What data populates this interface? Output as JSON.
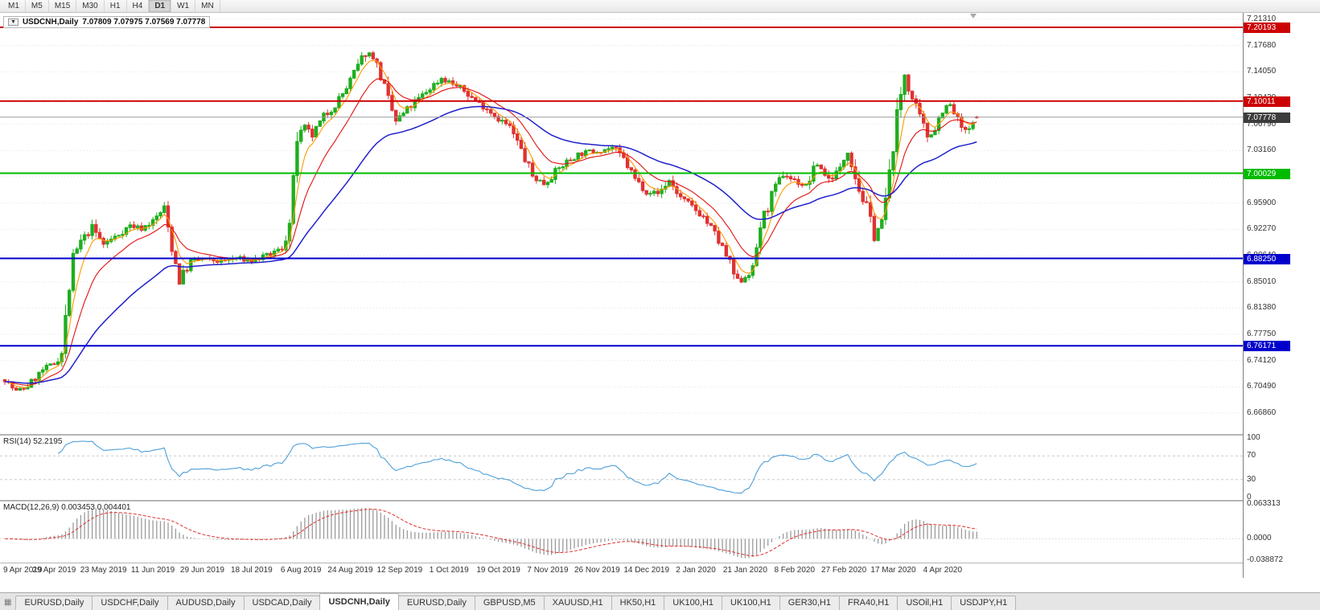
{
  "toolbar": {
    "timeframes": [
      "M1",
      "M5",
      "M15",
      "M30",
      "H1",
      "H4",
      "D1",
      "W1",
      "MN"
    ],
    "active_timeframe": "D1"
  },
  "chart": {
    "symbol_title": "USDCNH,Daily",
    "ohlc_line": "7.07809 7.07975 7.07569 7.07778",
    "dropdown_icon": "▼"
  },
  "chart_data": {
    "type": "candlestick",
    "symbol": "USDCNH",
    "period": "Daily",
    "current_bar": {
      "open": 7.07809,
      "high": 7.07975,
      "low": 7.07569,
      "close": 7.07778
    },
    "y_axis": {
      "top_price": 7.2131,
      "tick_step": 0.0363,
      "ticks": [
        "7.21310",
        "7.17680",
        "7.14050",
        "7.10420",
        "7.06790",
        "7.03160",
        "6.99530",
        "6.95900",
        "6.92270",
        "6.88640",
        "6.85010",
        "6.81380",
        "6.77750",
        "6.74120",
        "6.70490",
        "6.66860"
      ]
    },
    "x_axis": {
      "label_day_step": 13,
      "labels": [
        "9 Apr 2019",
        "29 Apr 2019",
        "23 May 2019",
        "11 Jun 2019",
        "29 Jun 2019",
        "18 Jul 2019",
        "6 Aug 2019",
        "24 Aug 2019",
        "12 Sep 2019",
        "1 Oct 2019",
        "19 Oct 2019",
        "7 Nov 2019",
        "26 Nov 2019",
        "14 Dec 2019",
        "2 Jan 2020",
        "21 Jan 2020",
        "8 Feb 2020",
        "27 Feb 2020",
        "17 Mar 2020",
        "4 Apr 2020"
      ]
    },
    "horizontal_lines": [
      {
        "price": 7.20193,
        "label": "7.20193",
        "color": "#cc0000"
      },
      {
        "price": 7.10011,
        "label": "7.10011",
        "color": "#cc0000"
      },
      {
        "price": 7.00029,
        "label": "7.00029",
        "color": "#00bb00"
      },
      {
        "price": 6.8825,
        "label": "6.88250",
        "color": "#0000cc"
      },
      {
        "price": 6.76171,
        "label": "6.76171",
        "color": "#0000cc"
      }
    ],
    "current_price": {
      "value": 7.07778,
      "label": "7.07778",
      "badge_color": "#3c3c3c"
    },
    "candles": {
      "days_total": 257,
      "noise_seed": 7,
      "up_color": "#1fae1f",
      "down_color": "#e03232",
      "anchors": [
        [
          0,
          6.715
        ],
        [
          3,
          6.698
        ],
        [
          6,
          6.706
        ],
        [
          10,
          6.728
        ],
        [
          13,
          6.737
        ],
        [
          15,
          6.752
        ],
        [
          16,
          6.8
        ],
        [
          18,
          6.882
        ],
        [
          20,
          6.905
        ],
        [
          23,
          6.925
        ],
        [
          26,
          6.902
        ],
        [
          29,
          6.912
        ],
        [
          33,
          6.928
        ],
        [
          36,
          6.924
        ],
        [
          39,
          6.934
        ],
        [
          42,
          6.952
        ],
        [
          44,
          6.898
        ],
        [
          46,
          6.853
        ],
        [
          49,
          6.878
        ],
        [
          52,
          6.882
        ],
        [
          57,
          6.878
        ],
        [
          61,
          6.883
        ],
        [
          65,
          6.879
        ],
        [
          69,
          6.886
        ],
        [
          73,
          6.896
        ],
        [
          75,
          6.93
        ],
        [
          77,
          7.048
        ],
        [
          79,
          7.062
        ],
        [
          81,
          7.052
        ],
        [
          84,
          7.078
        ],
        [
          87,
          7.095
        ],
        [
          90,
          7.118
        ],
        [
          93,
          7.148
        ],
        [
          95,
          7.168
        ],
        [
          97,
          7.162
        ],
        [
          99,
          7.135
        ],
        [
          101,
          7.1
        ],
        [
          103,
          7.072
        ],
        [
          106,
          7.088
        ],
        [
          109,
          7.103
        ],
        [
          112,
          7.118
        ],
        [
          115,
          7.132
        ],
        [
          118,
          7.124
        ],
        [
          121,
          7.114
        ],
        [
          124,
          7.1
        ],
        [
          127,
          7.09
        ],
        [
          130,
          7.076
        ],
        [
          133,
          7.064
        ],
        [
          136,
          7.032
        ],
        [
          139,
          6.996
        ],
        [
          142,
          6.986
        ],
        [
          145,
          7.002
        ],
        [
          148,
          7.016
        ],
        [
          151,
          7.026
        ],
        [
          154,
          7.03
        ],
        [
          157,
          7.032
        ],
        [
          160,
          7.036
        ],
        [
          163,
          7.02
        ],
        [
          166,
          6.992
        ],
        [
          169,
          6.976
        ],
        [
          172,
          6.972
        ],
        [
          175,
          6.99
        ],
        [
          178,
          6.966
        ],
        [
          181,
          6.954
        ],
        [
          184,
          6.94
        ],
        [
          187,
          6.916
        ],
        [
          190,
          6.886
        ],
        [
          193,
          6.848
        ],
        [
          195,
          6.858
        ],
        [
          197,
          6.868
        ],
        [
          199,
          6.928
        ],
        [
          202,
          6.968
        ],
        [
          205,
          7.0
        ],
        [
          208,
          6.99
        ],
        [
          211,
          6.982
        ],
        [
          214,
          7.014
        ],
        [
          217,
          6.992
        ],
        [
          220,
          7.006
        ],
        [
          222,
          7.036
        ],
        [
          225,
          6.978
        ],
        [
          227,
          6.952
        ],
        [
          229,
          6.916
        ],
        [
          231,
          6.932
        ],
        [
          233,
          6.998
        ],
        [
          235,
          7.08
        ],
        [
          237,
          7.138
        ],
        [
          239,
          7.102
        ],
        [
          241,
          7.076
        ],
        [
          243,
          7.052
        ],
        [
          245,
          7.062
        ],
        [
          247,
          7.09
        ],
        [
          249,
          7.094
        ],
        [
          251,
          7.072
        ],
        [
          253,
          7.056
        ],
        [
          255,
          7.066
        ],
        [
          256,
          7.0778
        ]
      ]
    },
    "moving_averages": [
      {
        "name": "fast",
        "period": 5,
        "color": "#ff9900"
      },
      {
        "name": "medium",
        "period": 13,
        "color": "#e01010"
      },
      {
        "name": "slow",
        "period": 40,
        "color": "#2020cc"
      }
    ],
    "rsi": {
      "name": "RSI(14)",
      "value": "52.2195",
      "period": 14,
      "axis_labels": [
        "100",
        "70",
        "30",
        "0"
      ],
      "levels": [
        70,
        30
      ],
      "color": "#4f9fd8",
      "range": [
        0,
        100
      ]
    },
    "macd": {
      "name": "MACD(12,26,9)",
      "values": "0.003453 0.004401",
      "fast": 12,
      "slow": 26,
      "signal": 9,
      "axis_labels": {
        "top": "0.063313",
        "zero": "0.0000",
        "bottom": "-0.038872"
      },
      "range": [
        -0.038872,
        0.063313
      ],
      "hist_color": "#9a9a9a",
      "signal_color": "#e03030"
    }
  },
  "tabs": {
    "items": [
      {
        "label": "EURUSD,Daily",
        "active": false
      },
      {
        "label": "USDCHF,Daily",
        "active": false
      },
      {
        "label": "AUDUSD,Daily",
        "active": false
      },
      {
        "label": "USDCAD,Daily",
        "active": false
      },
      {
        "label": "USDCNH,Daily",
        "active": true
      },
      {
        "label": "EURUSD,Daily",
        "active": false
      },
      {
        "label": "GBPUSD,M5",
        "active": false
      },
      {
        "label": "XAUUSD,H1",
        "active": false
      },
      {
        "label": "HK50,H1",
        "active": false
      },
      {
        "label": "UK100,H1",
        "active": false
      },
      {
        "label": "UK100,H1",
        "active": false
      },
      {
        "label": "GER30,H1",
        "active": false
      },
      {
        "label": "FRA40,H1",
        "active": false
      },
      {
        "label": "USOil,H1",
        "active": false
      },
      {
        "label": "USDJPY,H1",
        "active": false
      }
    ]
  }
}
